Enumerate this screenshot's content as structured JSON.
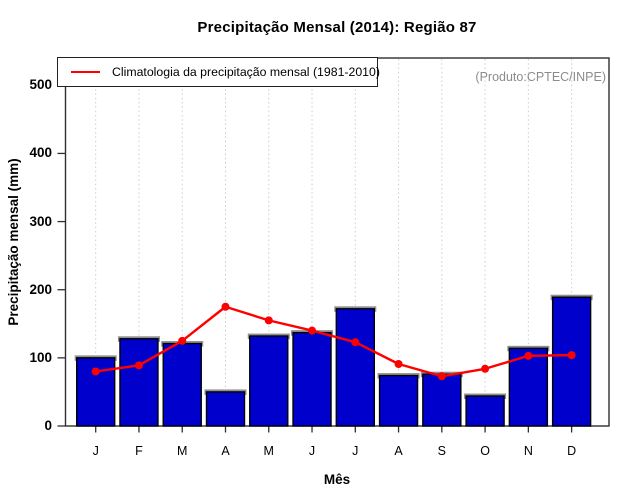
{
  "title": "Precipitação Mensal (2014): Região 87",
  "annotations": {
    "source": "(Produto:CPTEC/INPE)"
  },
  "legend": {
    "label": "Climatologia da precipitação mensal (1981-2010)"
  },
  "colors": {
    "bar": "#0000CD",
    "bar_border": "#000000",
    "bar_shadow": "#909090",
    "line": "#FF0000",
    "axis": "#2F2F2F",
    "grid": "#CDCDCD",
    "source_text": "#8C8C8C",
    "text": "#000000",
    "background": "#FFFFFF"
  },
  "chart_data": {
    "type": "bar",
    "title": "Precipitação Mensal (2014): Região 87",
    "xlabel": "Mês",
    "ylabel": "Precipitação mensal (mm)",
    "categories": [
      "J",
      "F",
      "M",
      "A",
      "M",
      "J",
      "J",
      "A",
      "S",
      "O",
      "N",
      "D"
    ],
    "series": [
      {
        "name": "Precipitação Mensal (2014)",
        "type": "bar",
        "values": [
          100,
          128,
          121,
          50,
          132,
          137,
          172,
          74,
          76,
          44,
          114,
          189
        ]
      },
      {
        "name": "Climatologia da precipitação mensal (1981-2010)",
        "type": "line",
        "values": [
          80,
          89,
          125,
          175,
          155,
          140,
          123,
          91,
          73,
          84,
          103,
          104
        ]
      }
    ],
    "ylim": [
      0,
      500
    ],
    "yticks": [
      0,
      100,
      200,
      300,
      400,
      500
    ],
    "grid": "vertical-dotted",
    "legend_position": "top-left",
    "annotation": "(Produto:CPTEC/INPE)"
  }
}
